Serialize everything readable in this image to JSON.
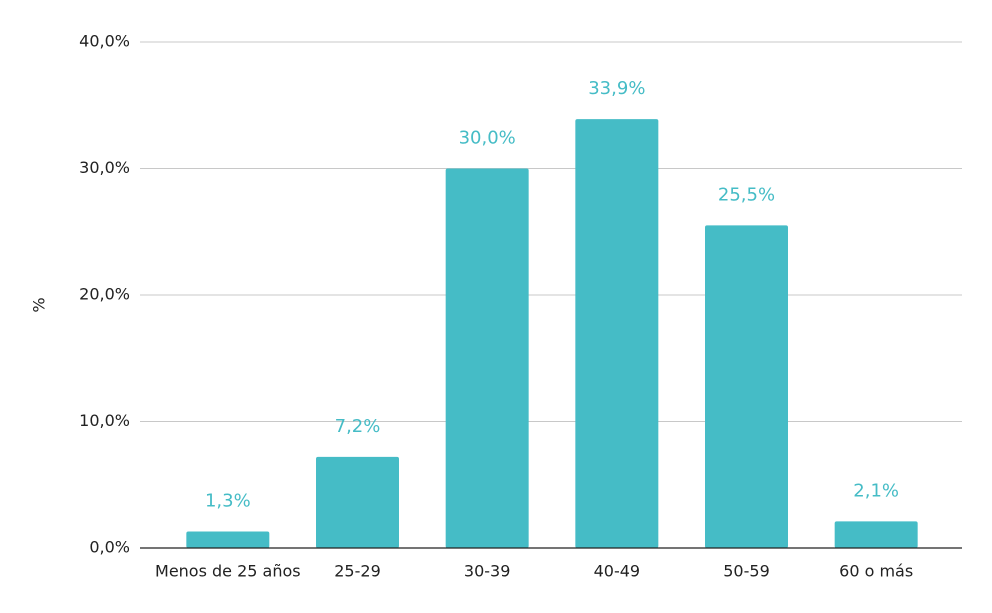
{
  "chart_data": {
    "type": "bar",
    "y_label": "%",
    "categories": [
      "Menos de 25 años",
      "25-29",
      "30-39",
      "40-49",
      "50-59",
      "60 o más"
    ],
    "values": [
      1.3,
      7.2,
      30.0,
      33.9,
      25.5,
      2.1
    ],
    "value_labels": [
      "1,3%",
      "7,2%",
      "30,0%",
      "33,9%",
      "25,5%",
      "2,1%"
    ],
    "color": "#45bcc6",
    "ylim": [
      0,
      40
    ],
    "yticks": [
      {
        "value": 0,
        "label": "0,0%"
      },
      {
        "value": 10,
        "label": "10,0%"
      },
      {
        "value": 20,
        "label": "20,0%"
      },
      {
        "value": 30,
        "label": "30,0%"
      },
      {
        "value": 40,
        "label": "40,0%"
      }
    ],
    "grid": true
  }
}
